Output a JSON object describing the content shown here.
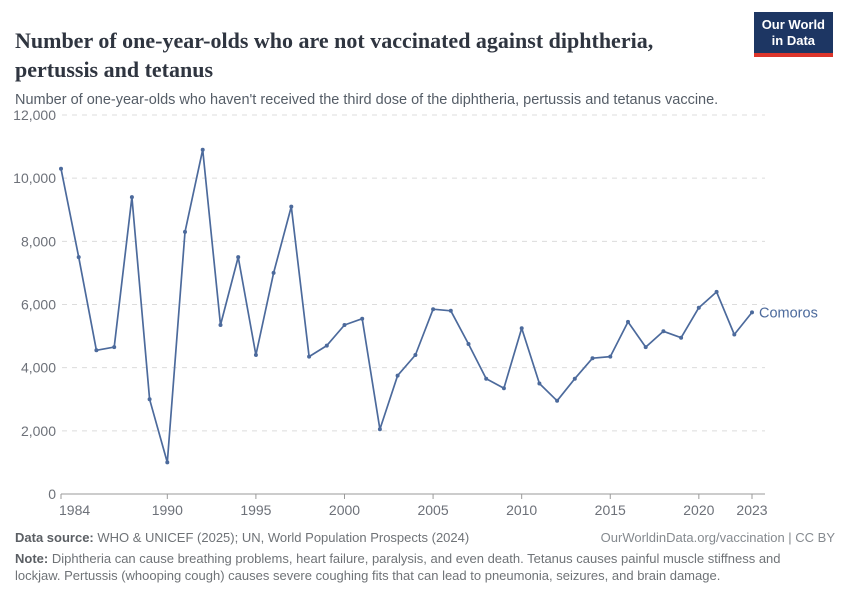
{
  "header": {
    "title": "Number of one-year-olds who are not vaccinated against diphtheria, pertussis and tetanus",
    "subtitle": "Number of one-year-olds who haven't received the third dose of the diphtheria, pertussis and tetanus vaccine.",
    "logo": {
      "line1": "Our World",
      "line2": "in Data"
    }
  },
  "chart_data": {
    "type": "line",
    "title": "Number of one-year-olds who are not vaccinated against diphtheria, pertussis and tetanus",
    "entity_label": "Comoros",
    "x": [
      1984,
      1985,
      1986,
      1987,
      1988,
      1989,
      1990,
      1991,
      1992,
      1993,
      1994,
      1995,
      1996,
      1997,
      1998,
      1999,
      2000,
      2001,
      2002,
      2003,
      2004,
      2005,
      2006,
      2007,
      2008,
      2009,
      2010,
      2011,
      2012,
      2013,
      2014,
      2015,
      2016,
      2017,
      2018,
      2019,
      2020,
      2021,
      2022,
      2023
    ],
    "series": [
      {
        "name": "Comoros",
        "values": [
          10300,
          7500,
          4550,
          4650,
          9400,
          3000,
          1000,
          8300,
          10900,
          5350,
          7500,
          4400,
          7000,
          9100,
          4350,
          4700,
          5350,
          5550,
          2050,
          3750,
          4400,
          5850,
          5800,
          4750,
          3650,
          3350,
          5250,
          3500,
          2950,
          3650,
          4300,
          4350,
          5450,
          4650,
          5150,
          4950,
          5900,
          6400,
          5050,
          5750
        ]
      }
    ],
    "xlim": [
      1984,
      2023
    ],
    "ylim": [
      0,
      12000
    ],
    "x_ticks": [
      1984,
      1990,
      1995,
      2000,
      2005,
      2010,
      2015,
      2020,
      2023
    ],
    "y_ticks": [
      0,
      2000,
      4000,
      6000,
      8000,
      10000,
      12000
    ],
    "grid": "horizontal-dashed",
    "legend_position": "end-of-line"
  },
  "footer": {
    "datasource_label": "Data source:",
    "datasource_text": " WHO & UNICEF (2025); UN, World Population Prospects (2024)",
    "link_text": "OurWorldinData.org/vaccination | CC BY",
    "note_label": "Note:",
    "note_text": " Diphtheria can cause breathing problems, heart failure, paralysis, and even death. Tetanus causes painful muscle stiffness and lockjaw. Pertussis (whooping cough) causes severe coughing fits that can lead to pneumonia, seizures, and brain damage."
  },
  "colors": {
    "line": "#4C6A9C",
    "grid": "#dcdcdc",
    "axis": "#9a9a9a",
    "tick_label": "#6d7179",
    "title": "#2f3540",
    "subtitle": "#555d67",
    "logo_bg": "#1d3663",
    "logo_red": "#dc352b"
  }
}
